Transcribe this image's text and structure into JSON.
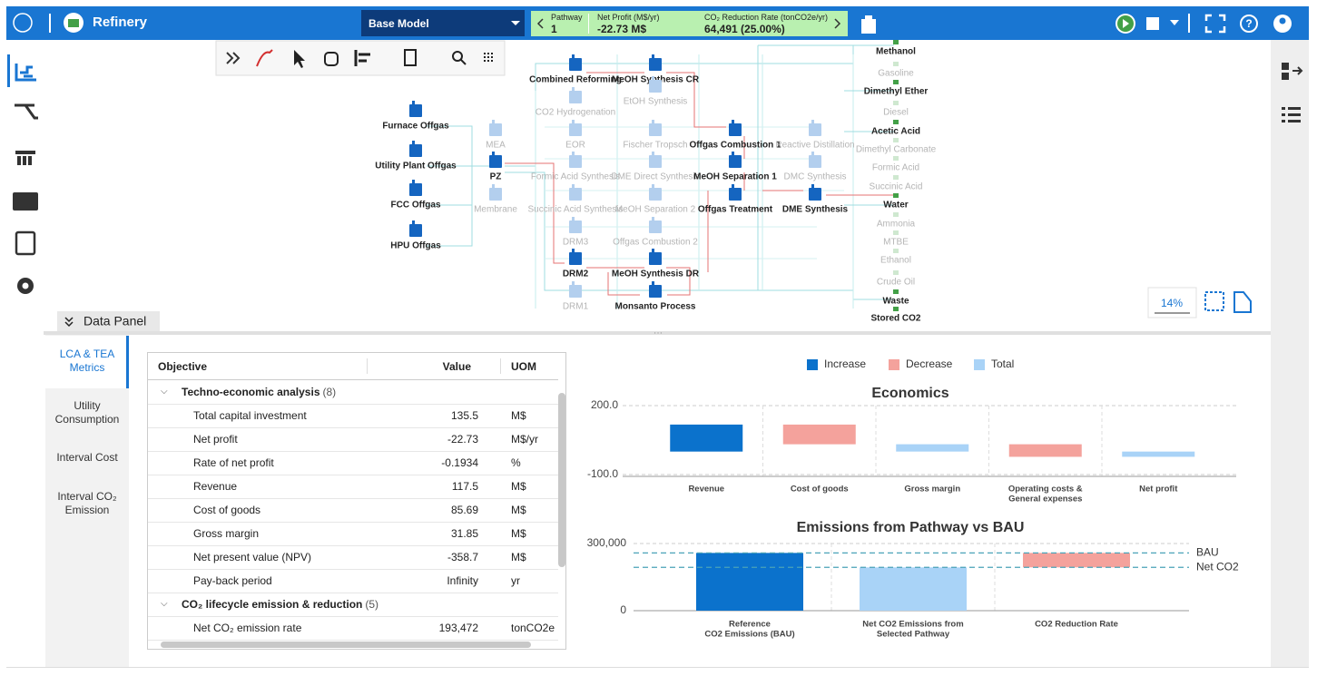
{
  "header": {
    "app_name": "Refinery",
    "model": "Base Model",
    "pathway": {
      "label": "Pathway",
      "value": "1"
    },
    "net_profit": {
      "label": "Net Profit (M$/yr)",
      "value": "-22.73 M$"
    },
    "co2_reduction": {
      "label": "CO₂ Reduction Rate (tonCO2e/yr)",
      "value": "64,491 (25.00%)"
    }
  },
  "flowsheet": {
    "zoom": "14%",
    "columns": [
      [
        {
          "label": "Furnace Offgas",
          "active": true
        },
        {
          "label": "Utility Plant Offgas",
          "active": true
        },
        {
          "label": "FCC Offgas",
          "active": true
        },
        {
          "label": "HPU Offgas",
          "active": true
        }
      ],
      [
        {
          "label": "MEA",
          "active": false
        },
        {
          "label": "PZ",
          "active": true
        },
        {
          "label": "Membrane",
          "active": false
        }
      ],
      [
        {
          "label": "Combined Reforming",
          "active": true
        },
        {
          "label": "CO2 Hydrogenation",
          "active": false
        },
        {
          "label": "EOR",
          "active": false
        },
        {
          "label": "Formic Acid Synthesis",
          "active": false
        },
        {
          "label": "Succinic Acid Synthesis",
          "active": false
        },
        {
          "label": "DRM3",
          "active": false
        },
        {
          "label": "DRM2",
          "active": true
        },
        {
          "label": "DRM1",
          "active": false
        }
      ],
      [
        {
          "label": "MeOH Synthesis CR",
          "active": true
        },
        {
          "label": "EtOH Synthesis",
          "active": false
        },
        {
          "label": "Fischer Tropsch",
          "active": false
        },
        {
          "label": "DME Direct Synthesis",
          "active": false
        },
        {
          "label": "MeOH Separation 2",
          "active": false
        },
        {
          "label": "Offgas Combustion 2",
          "active": false
        },
        {
          "label": "MeOH Synthesis DR",
          "active": true
        },
        {
          "label": "Monsanto Process",
          "active": true
        }
      ],
      [
        {
          "label": "Offgas Combustion 1",
          "active": true
        },
        {
          "label": "MeOH Separation 1",
          "active": true
        },
        {
          "label": "Offgas Treatment",
          "active": true
        }
      ],
      [
        {
          "label": "Reactive Distillation",
          "active": false
        },
        {
          "label": "DMC Synthesis",
          "active": false
        },
        {
          "label": "DME Synthesis",
          "active": true
        }
      ],
      [
        {
          "label": "Methanol",
          "active": true
        },
        {
          "label": "Gasoline",
          "active": false
        },
        {
          "label": "Dimethyl Ether",
          "active": true
        },
        {
          "label": "Diesel",
          "active": false
        },
        {
          "label": "Acetic Acid",
          "active": true
        },
        {
          "label": "Dimethyl Carbonate",
          "active": false
        },
        {
          "label": "Formic Acid",
          "active": false
        },
        {
          "label": "Succinic Acid",
          "active": false
        },
        {
          "label": "Water",
          "active": true
        },
        {
          "label": "Ammonia",
          "active": false
        },
        {
          "label": "MTBE",
          "active": false
        },
        {
          "label": "Ethanol",
          "active": false
        },
        {
          "label": "Crude Oil",
          "active": false
        },
        {
          "label": "Waste",
          "active": true
        },
        {
          "label": "Stored CO2",
          "active": true
        }
      ]
    ]
  },
  "data_panel": {
    "title": "Data Panel",
    "tabs": [
      [
        "LCA & TEA",
        "Metrics"
      ],
      [
        "Utility",
        "Consumption"
      ],
      [
        "Interval Cost"
      ],
      [
        "Interval CO₂",
        "Emission"
      ]
    ],
    "table": {
      "headers": [
        "Objective",
        "Value",
        "UOM"
      ],
      "groups": [
        {
          "name": "Techno-economic analysis",
          "count": "(8)",
          "rows": [
            [
              "Total capital investment",
              "135.5",
              "M$"
            ],
            [
              "Net profit",
              "-22.73",
              "M$/yr"
            ],
            [
              "Rate of net profit",
              "-0.1934",
              "%"
            ],
            [
              "Revenue",
              "117.5",
              "M$"
            ],
            [
              "Cost of goods",
              "85.69",
              "M$"
            ],
            [
              "Gross margin",
              "31.85",
              "M$"
            ],
            [
              "Net present value (NPV)",
              "-358.7",
              "M$"
            ],
            [
              "Pay-back period",
              "Infinity",
              "yr"
            ]
          ]
        },
        {
          "name": "CO₂ lifecycle emission & reduction",
          "count": "(5)",
          "rows": [
            [
              "Net CO₂ emission rate",
              "193,472",
              "tonCO2e"
            ]
          ]
        }
      ]
    },
    "legend": [
      {
        "name": "Increase",
        "color": "#0b72cc"
      },
      {
        "name": "Decrease",
        "color": "#f4a29c"
      },
      {
        "name": "Total",
        "color": "#a9d3f7"
      }
    ]
  },
  "chart_data": [
    {
      "type": "waterfall",
      "title": "Economics",
      "categories": [
        [
          "Revenue"
        ],
        [
          "Cost of goods"
        ],
        [
          "Gross margin"
        ],
        [
          "Operating costs &",
          "General expenses"
        ],
        [
          "Net profit"
        ]
      ],
      "values": [
        117.5,
        -85.69,
        31.85,
        -54.58,
        -22.73
      ],
      "kinds": [
        "Increase",
        "Decrease",
        "Total",
        "Decrease",
        "Total"
      ],
      "ylim": [
        -100,
        200
      ],
      "yticks": [
        {
          "value": -100,
          "label": "-100.0"
        },
        {
          "value": 200,
          "label": "200.0"
        }
      ],
      "grid": true
    },
    {
      "type": "waterfall",
      "title": "Emissions from Pathway vs BAU",
      "categories": [
        [
          "Reference",
          "CO2 Emissions (BAU)"
        ],
        [
          "Net CO2 Emissions from",
          "Selected Pathway"
        ],
        [
          "CO2 Reduction Rate"
        ]
      ],
      "values": [
        257963,
        193472,
        -64491
      ],
      "kinds": [
        "Increase",
        "Total",
        "Decrease"
      ],
      "ylim": [
        0,
        300000
      ],
      "yticks": [
        0,
        {
          "value": 300000,
          "label": "300,000"
        }
      ],
      "reference_lines": [
        {
          "label": "BAU",
          "value": 257963
        },
        {
          "label": "Net CO2",
          "value": 193472
        }
      ],
      "grid": true
    }
  ]
}
